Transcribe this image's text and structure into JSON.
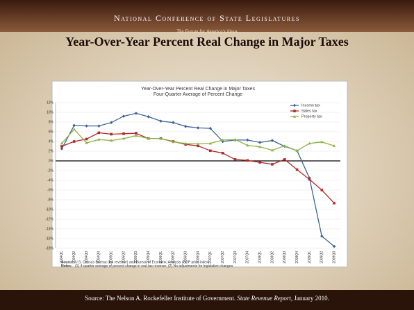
{
  "header": {
    "org": "National Conference of State Legislatures",
    "tagline": "The Forum for America's Ideas"
  },
  "slide_title": "Year-Over-Year Percent Real Change in Major Taxes",
  "chart_data": {
    "type": "line",
    "title": "Year-Over-Year Percent Real Change in Major Taxes",
    "subtitle": "Four-Quarter Average of Percent Change",
    "categories": [
      "2004Q1",
      "2004Q2",
      "2004Q3",
      "2004Q4",
      "2005Q1",
      "2005Q2",
      "2005Q3",
      "2005Q4",
      "2006Q1",
      "2006Q2",
      "2006Q3",
      "2006Q4",
      "2007Q1",
      "2007Q2",
      "2007Q3",
      "2007Q4",
      "2008Q1",
      "2008Q2",
      "2008Q3",
      "2008Q4",
      "2009Q1",
      "2009Q2",
      "2009Q3"
    ],
    "series": [
      {
        "name": "Income tax",
        "color": "#3c6496",
        "marker": "diamond",
        "values": [
          2.5,
          7.3,
          7.2,
          7.2,
          7.9,
          9.2,
          9.8,
          9.1,
          8.2,
          7.9,
          7.1,
          6.8,
          6.7,
          4.0,
          4.3,
          4.3,
          3.8,
          4.2,
          3.0,
          2.1,
          -3.5,
          -15.5,
          -17.6
        ]
      },
      {
        "name": "Sales tax",
        "color": "#b02a26",
        "marker": "square",
        "values": [
          3.0,
          4.0,
          4.5,
          5.8,
          5.5,
          5.6,
          5.7,
          4.6,
          4.6,
          4.0,
          3.4,
          3.1,
          2.1,
          1.6,
          0.3,
          0.1,
          -0.3,
          -0.7,
          0.3,
          -1.8,
          -3.8,
          -6.0,
          -8.7
        ]
      },
      {
        "name": "Property tax",
        "color": "#8db446",
        "marker": "triangle",
        "values": [
          3.6,
          6.5,
          3.7,
          4.4,
          4.2,
          4.6,
          5.2,
          4.6,
          4.6,
          3.9,
          3.6,
          3.5,
          3.6,
          4.3,
          4.4,
          3.2,
          2.9,
          2.2,
          3.1,
          2.1,
          3.6,
          3.9,
          3.1
        ]
      }
    ],
    "ylim": [
      -18,
      12
    ],
    "yticks": [
      {
        "value": -18,
        "label": "-18%"
      },
      {
        "value": -16,
        "label": "-16%"
      },
      {
        "value": -14,
        "label": "-14%"
      },
      {
        "value": -12,
        "label": "-12%"
      },
      {
        "value": -10,
        "label": "-10%"
      },
      {
        "value": -8,
        "label": "-8%"
      },
      {
        "value": -6,
        "label": "-6%"
      },
      {
        "value": -4,
        "label": "-4%"
      },
      {
        "value": -2,
        "label": "-2%"
      },
      {
        "value": 0,
        "label": "0%"
      },
      {
        "value": 2,
        "label": "2%"
      },
      {
        "value": 4,
        "label": "4%"
      },
      {
        "value": 6,
        "label": "6%"
      },
      {
        "value": 8,
        "label": "8%"
      },
      {
        "value": 10,
        "label": "10%"
      },
      {
        "value": 12,
        "label": "12%"
      }
    ],
    "grid": true,
    "legend": "top-right",
    "source_label": "Source:",
    "source": "U.S. Census Bureau (tax revenue) and Bureau of Economic Analysis (GDP price index).",
    "notes_label": "Notes:",
    "notes": "(1) 4-quarter average of percent change in real tax revenue; (2) No adjustments for legislative changes."
  },
  "footer": {
    "prefix": "Source: The Nelson A. Rockefeller Institute of Government. ",
    "publication": "State Revenue Report",
    "suffix": ", January 2010."
  }
}
